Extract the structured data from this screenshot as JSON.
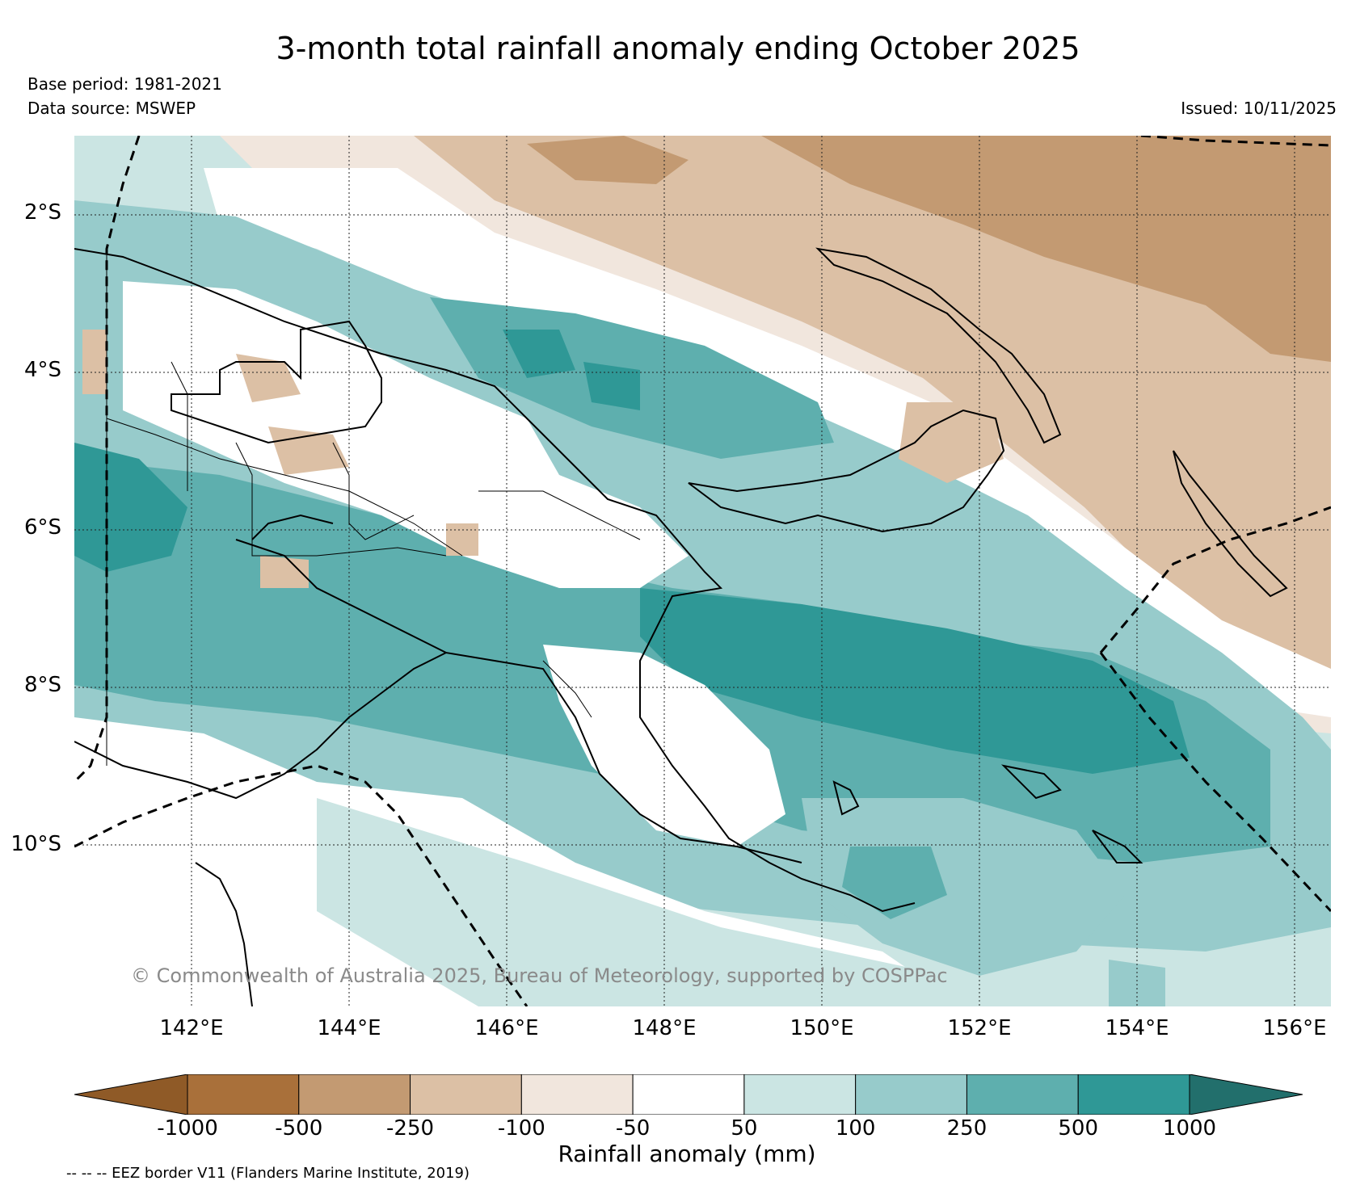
{
  "header": {
    "title": "3-month total rainfall anomaly ending October 2025",
    "base_period": "Base period: 1981-2021",
    "data_source": "Data source: MSWEP",
    "issued": "Issued: 10/11/2025"
  },
  "map": {
    "lat_labels": [
      "2°S",
      "4°S",
      "6°S",
      "8°S",
      "10°S"
    ],
    "lon_labels": [
      "142°E",
      "144°E",
      "146°E",
      "148°E",
      "150°E",
      "152°E",
      "154°E",
      "156°E"
    ],
    "copyright": "© Commonwealth of Australia 2025, Bureau of Meteorology, supported by COSPPac"
  },
  "legend": {
    "label": "Rainfall anomaly (mm)",
    "ticks": [
      "-1000",
      "-500",
      "-250",
      "-100",
      "-50",
      "50",
      "100",
      "250",
      "500",
      "1000"
    ],
    "colors": [
      "#8f5a27",
      "#a9703a",
      "#c39a72",
      "#dcc0a5",
      "#f1e6dd",
      "#ffffff",
      "#cbe5e3",
      "#97cbcb",
      "#5eafae",
      "#2f9896",
      "#226f6c"
    ],
    "eez_note": "-- -- -- EEZ border V11 (Flanders Marine Institute, 2019)"
  }
}
